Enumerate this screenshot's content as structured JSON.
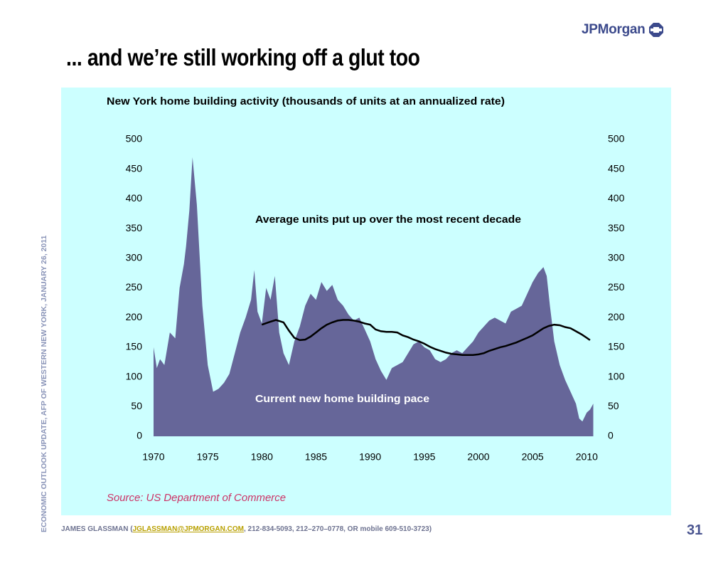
{
  "slide": {
    "title": "... and we’re still working off a glut too",
    "logo_text": "JPMorgan",
    "side_caption": "ECONOMIC OUTLOOK UPDATE, AFP OF WESTERN NEW YORK, JANUARY 26, 2011",
    "footer_prefix": "JAMES GLASSMAN (",
    "footer_email": "JGLASSMAN@JPMORGAN.COM",
    "footer_suffix": ", 212-834-5093, 212–270–0778, OR mobile 609-510-3723)",
    "page_number": "31",
    "colors": {
      "panel": "#ccffff",
      "area": "#666699",
      "line": "#000000",
      "source": "#cc3366",
      "brand": "#3c4a8c"
    }
  },
  "chart_data": {
    "type": "area",
    "title": "New York home building activity (thousands of units at an annualized rate)",
    "source": "Source: US Department of Commerce",
    "xlim": [
      1970,
      2010.7
    ],
    "ylim": [
      0,
      500
    ],
    "x_ticks": [
      "1970",
      "1975",
      "1980",
      "1985",
      "1990",
      "1995",
      "2000",
      "2005",
      "2010"
    ],
    "y_ticks_left": [
      "0",
      "50",
      "100",
      "150",
      "200",
      "250",
      "300",
      "350",
      "400",
      "450",
      "500"
    ],
    "y_ticks_right": [
      "0",
      "50",
      "100",
      "150",
      "200",
      "250",
      "300",
      "350",
      "400",
      "450",
      "500"
    ],
    "grid": false,
    "annotations": {
      "average": "Average units put up over the most recent decade",
      "current": "Current new home building pace"
    },
    "series": [
      {
        "name": "Current new home building pace",
        "x": [
          1970.0,
          1970.3,
          1970.6,
          1971.0,
          1971.5,
          1972.0,
          1972.4,
          1972.8,
          1973.0,
          1973.3,
          1973.6,
          1974.0,
          1974.5,
          1975.0,
          1975.5,
          1976.0,
          1976.5,
          1977.0,
          1977.5,
          1978.0,
          1978.5,
          1979.0,
          1979.3,
          1979.6,
          1980.0,
          1980.4,
          1980.8,
          1981.2,
          1981.6,
          1982.0,
          1982.5,
          1983.0,
          1983.5,
          1984.0,
          1984.5,
          1985.0,
          1985.5,
          1986.0,
          1986.5,
          1987.0,
          1987.5,
          1988.0,
          1988.5,
          1989.0,
          1989.5,
          1990.0,
          1990.5,
          1991.0,
          1991.5,
          1992.0,
          1992.5,
          1993.0,
          1993.5,
          1994.0,
          1994.5,
          1995.0,
          1995.5,
          1996.0,
          1996.5,
          1997.0,
          1997.5,
          1998.0,
          1998.5,
          1999.0,
          1999.5,
          2000.0,
          2000.5,
          2001.0,
          2001.5,
          2002.0,
          2002.5,
          2003.0,
          2003.5,
          2004.0,
          2004.5,
          2005.0,
          2005.5,
          2006.0,
          2006.3,
          2006.6,
          2007.0,
          2007.5,
          2008.0,
          2008.5,
          2009.0,
          2009.3,
          2009.6,
          2010.0,
          2010.3,
          2010.6
        ],
        "values": [
          150,
          115,
          130,
          120,
          175,
          165,
          250,
          290,
          320,
          380,
          470,
          390,
          220,
          120,
          75,
          80,
          90,
          105,
          140,
          175,
          200,
          230,
          280,
          210,
          190,
          250,
          230,
          270,
          175,
          140,
          120,
          160,
          185,
          220,
          240,
          230,
          260,
          245,
          255,
          230,
          220,
          205,
          195,
          200,
          180,
          160,
          130,
          110,
          95,
          115,
          120,
          125,
          140,
          155,
          160,
          150,
          145,
          130,
          125,
          130,
          140,
          145,
          140,
          150,
          160,
          175,
          185,
          195,
          200,
          195,
          190,
          210,
          215,
          220,
          240,
          260,
          275,
          285,
          270,
          220,
          160,
          120,
          95,
          75,
          55,
          30,
          25,
          40,
          45,
          55
        ]
      },
      {
        "name": "Average units put up over the most recent decade",
        "x": [
          1980.0,
          1980.6,
          1981.3,
          1982.0,
          1982.5,
          1983.0,
          1983.5,
          1984.0,
          1984.5,
          1985.0,
          1985.5,
          1986.0,
          1986.5,
          1987.0,
          1987.5,
          1988.0,
          1988.5,
          1989.0,
          1989.5,
          1990.0,
          1990.5,
          1991.0,
          1991.5,
          1992.0,
          1992.5,
          1993.0,
          1993.5,
          1994.0,
          1994.5,
          1995.0,
          1995.5,
          1996.0,
          1996.5,
          1997.0,
          1997.5,
          1998.0,
          1998.5,
          1999.0,
          1999.5,
          2000.0,
          2000.5,
          2001.0,
          2001.5,
          2002.0,
          2002.5,
          2003.0,
          2003.5,
          2004.0,
          2004.5,
          2005.0,
          2005.5,
          2006.0,
          2006.5,
          2007.0,
          2007.5,
          2008.0,
          2008.5,
          2009.0,
          2009.5,
          2010.0,
          2010.3
        ],
        "values": [
          188,
          192,
          196,
          192,
          178,
          166,
          162,
          163,
          168,
          175,
          182,
          188,
          192,
          195,
          196,
          196,
          195,
          193,
          190,
          188,
          180,
          177,
          176,
          176,
          175,
          170,
          167,
          163,
          160,
          156,
          151,
          147,
          144,
          141,
          139,
          138,
          137,
          137,
          137,
          138,
          140,
          144,
          147,
          150,
          152,
          155,
          158,
          162,
          166,
          170,
          176,
          182,
          186,
          188,
          187,
          184,
          182,
          177,
          172,
          166,
          162
        ]
      }
    ]
  }
}
